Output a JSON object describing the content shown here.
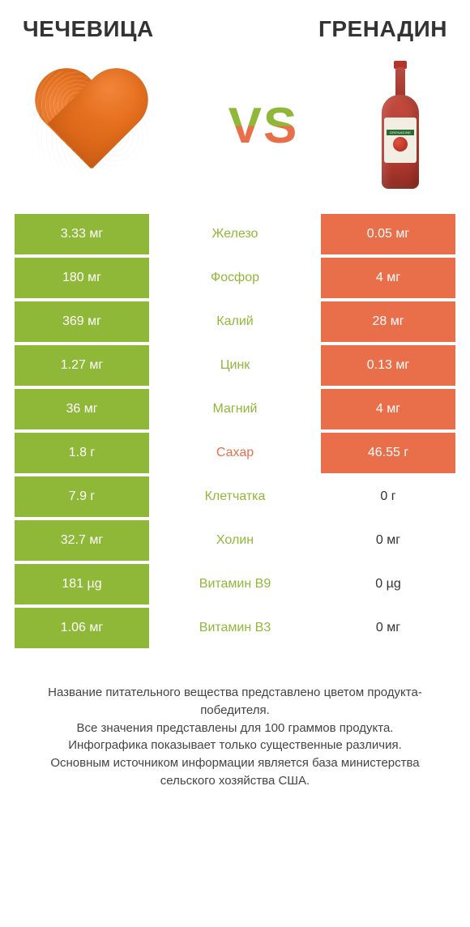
{
  "colors": {
    "left": "#8fb839",
    "right": "#e86f4a",
    "background": "#ffffff",
    "text": "#333333"
  },
  "header": {
    "left_title": "ЧЕЧЕВИЦА",
    "right_title": "ГРЕНАДИН",
    "vs_label": "VS"
  },
  "bottle": {
    "label_text": "GRENADINE"
  },
  "rows": [
    {
      "nutrient": "Железо",
      "left": "3.33 мг",
      "right": "0.05 мг",
      "winner": "left",
      "left_filled": true,
      "right_filled": true
    },
    {
      "nutrient": "Фосфор",
      "left": "180 мг",
      "right": "4 мг",
      "winner": "left",
      "left_filled": true,
      "right_filled": true
    },
    {
      "nutrient": "Калий",
      "left": "369 мг",
      "right": "28 мг",
      "winner": "left",
      "left_filled": true,
      "right_filled": true
    },
    {
      "nutrient": "Цинк",
      "left": "1.27 мг",
      "right": "0.13 мг",
      "winner": "left",
      "left_filled": true,
      "right_filled": true
    },
    {
      "nutrient": "Магний",
      "left": "36 мг",
      "right": "4 мг",
      "winner": "left",
      "left_filled": true,
      "right_filled": true
    },
    {
      "nutrient": "Сахар",
      "left": "1.8 г",
      "right": "46.55 г",
      "winner": "right",
      "left_filled": true,
      "right_filled": true
    },
    {
      "nutrient": "Клетчатка",
      "left": "7.9 г",
      "right": "0 г",
      "winner": "left",
      "left_filled": true,
      "right_filled": false
    },
    {
      "nutrient": "Холин",
      "left": "32.7 мг",
      "right": "0 мг",
      "winner": "left",
      "left_filled": true,
      "right_filled": false
    },
    {
      "nutrient": "Витамин B9",
      "left": "181 µg",
      "right": "0 µg",
      "winner": "left",
      "left_filled": true,
      "right_filled": false
    },
    {
      "nutrient": "Витамин B3",
      "left": "1.06 мг",
      "right": "0 мг",
      "winner": "left",
      "left_filled": true,
      "right_filled": false
    }
  ],
  "footer": {
    "line1": "Название питательного вещества представлено цветом продукта-победителя.",
    "line2": "Все значения представлены для 100 граммов продукта.",
    "line3": "Инфографика показывает только существенные различия.",
    "line4": "Основным источником информации является база министерства сельского хозяйства США."
  }
}
